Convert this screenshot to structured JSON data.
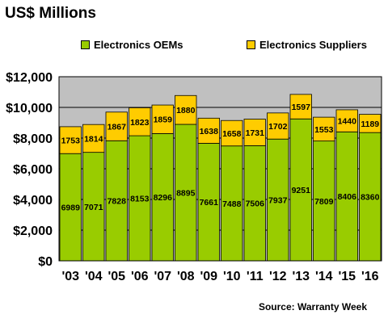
{
  "header": {
    "title": "US$ Millions"
  },
  "legend": {
    "items": [
      {
        "label": "Electronics OEMs",
        "color": "#99cc00"
      },
      {
        "label": "Electronics Suppliers",
        "color": "#ffcc00"
      }
    ]
  },
  "footer": {
    "source": "Source: Warranty Week"
  },
  "chart_data": {
    "type": "bar",
    "stacked": true,
    "categories": [
      "'03",
      "'04",
      "'05",
      "'06",
      "'07",
      "'08",
      "'09",
      "'10",
      "'11",
      "'12",
      "'13",
      "'14",
      "'15",
      "'16"
    ],
    "series": [
      {
        "name": "Electronics OEMs",
        "color": "#99cc00",
        "values": [
          6989,
          7071,
          7828,
          8153,
          8296,
          8895,
          7661,
          7488,
          7506,
          7937,
          9251,
          7809,
          8406,
          8360
        ]
      },
      {
        "name": "Electronics Suppliers",
        "color": "#ffcc00",
        "values": [
          1753,
          1814,
          1867,
          1823,
          1859,
          1880,
          1638,
          1658,
          1731,
          1702,
          1597,
          1553,
          1440,
          1189
        ]
      }
    ],
    "ylim": [
      0,
      12000
    ],
    "yticks": [
      {
        "value": 0,
        "label": "$0"
      },
      {
        "value": 2000,
        "label": "$2,000"
      },
      {
        "value": 4000,
        "label": "$4,000"
      },
      {
        "value": 6000,
        "label": "$6,000"
      },
      {
        "value": 8000,
        "label": "$8,000"
      },
      {
        "value": 10000,
        "label": "$10,000"
      },
      {
        "value": 12000,
        "label": "$12,000"
      }
    ],
    "grid": true,
    "legend_position": "top",
    "plot_background": "#c0c0c0"
  }
}
